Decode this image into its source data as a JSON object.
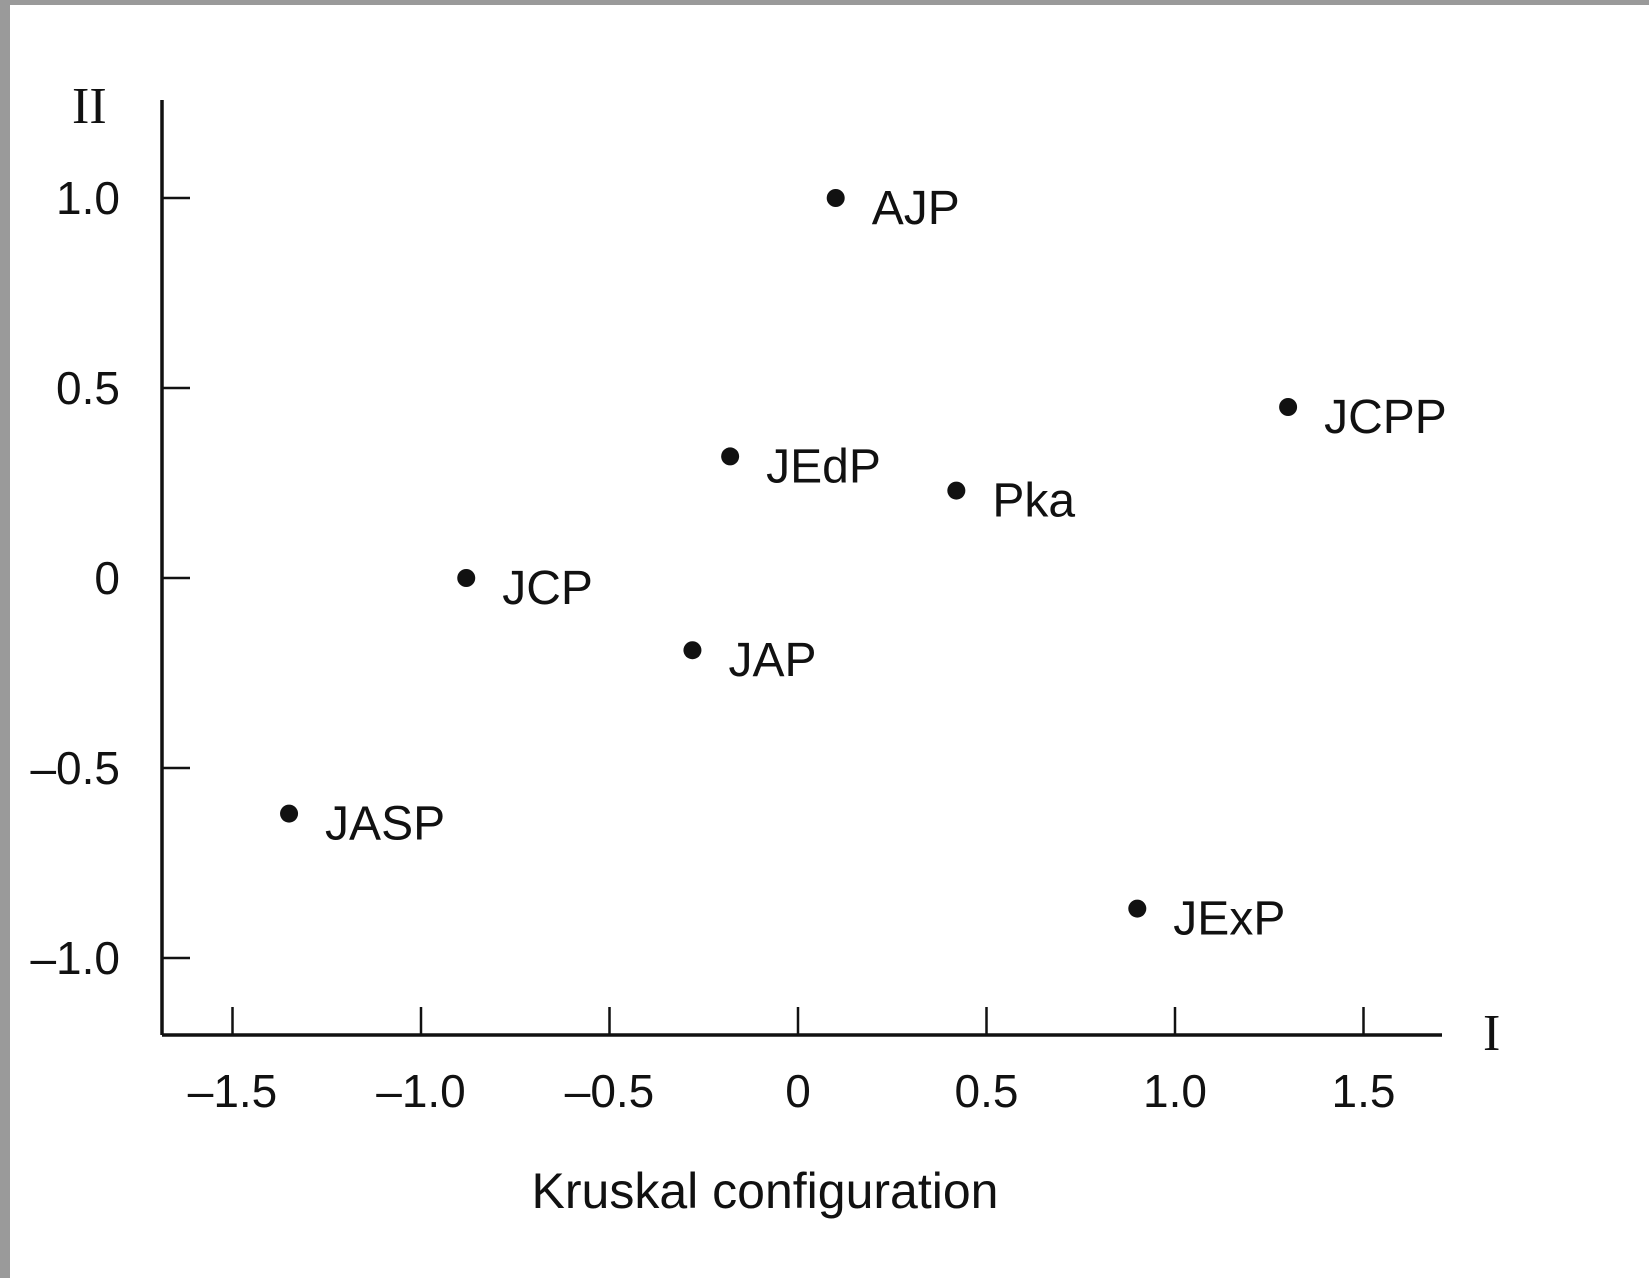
{
  "chart_data": {
    "type": "scatter",
    "title": "",
    "caption": "Kruskal configuration",
    "xlabel": "I",
    "ylabel": "II",
    "xlim": [
      -1.7,
      1.7
    ],
    "ylim": [
      -1.2,
      1.25
    ],
    "xticks": [
      {
        "value": -1.5,
        "label": "–1.5"
      },
      {
        "value": -1.0,
        "label": "–1.0"
      },
      {
        "value": -0.5,
        "label": "–0.5"
      },
      {
        "value": 0,
        "label": "0"
      },
      {
        "value": 0.5,
        "label": "0.5"
      },
      {
        "value": 1.0,
        "label": "1.0"
      },
      {
        "value": 1.5,
        "label": "1.5"
      }
    ],
    "yticks": [
      {
        "value": 1.0,
        "label": "1.0"
      },
      {
        "value": 0.5,
        "label": "0.5"
      },
      {
        "value": 0,
        "label": "0"
      },
      {
        "value": -0.5,
        "label": "–0.5"
      },
      {
        "value": -1.0,
        "label": "–1.0"
      }
    ],
    "grid": false,
    "points": [
      {
        "label": "AJP",
        "x": 0.1,
        "y": 1.0
      },
      {
        "label": "JCPP",
        "x": 1.3,
        "y": 0.45
      },
      {
        "label": "JEdP",
        "x": -0.18,
        "y": 0.32
      },
      {
        "label": "Pka",
        "x": 0.42,
        "y": 0.23
      },
      {
        "label": "JCP",
        "x": -0.88,
        "y": 0.0
      },
      {
        "label": "JAP",
        "x": -0.28,
        "y": -0.19
      },
      {
        "label": "JASP",
        "x": -1.35,
        "y": -0.62
      },
      {
        "label": "JExP",
        "x": 0.9,
        "y": -0.87
      }
    ],
    "colors": {
      "ink": "#111111",
      "background": "#ffffff"
    }
  }
}
